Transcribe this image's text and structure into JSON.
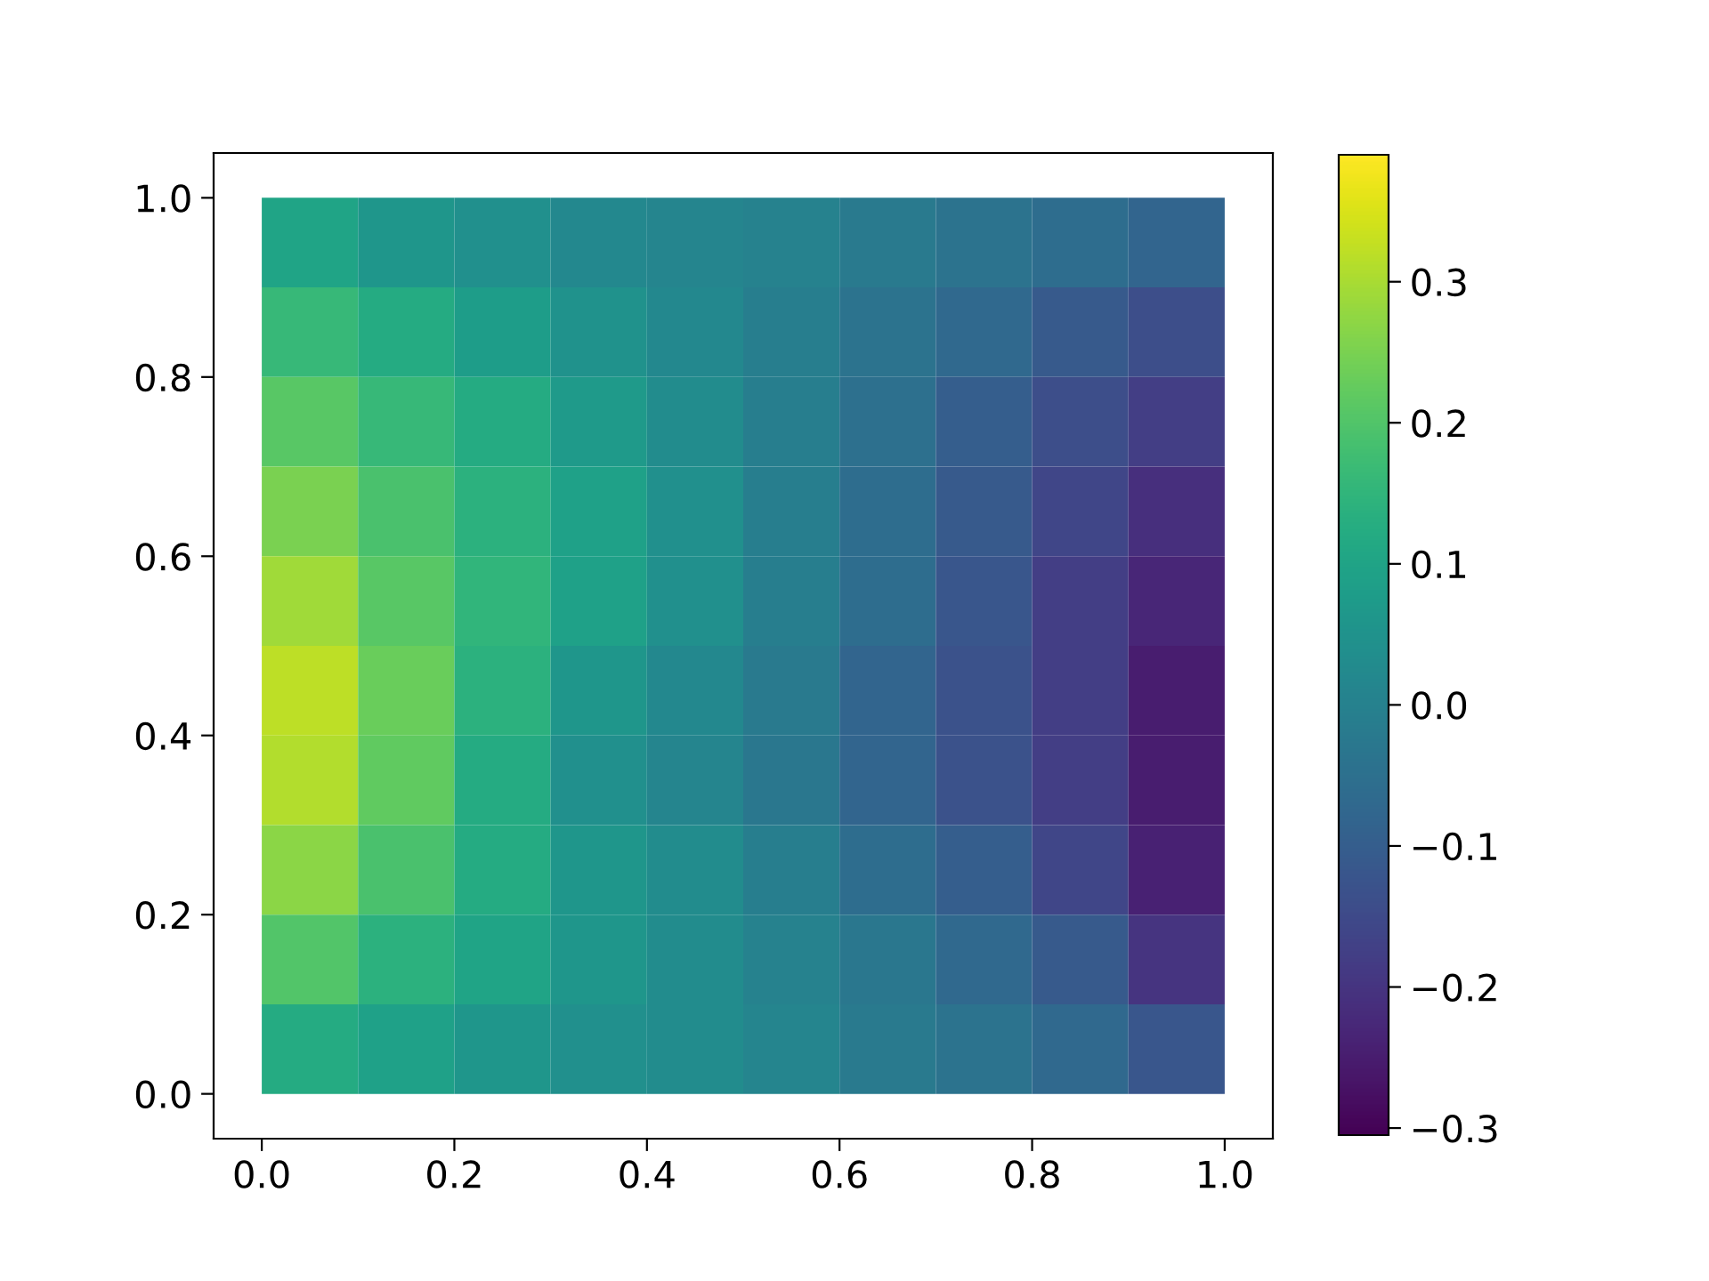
{
  "chart_data": {
    "type": "heatmap",
    "x": [
      0.05,
      0.15,
      0.25,
      0.35,
      0.45,
      0.55,
      0.65,
      0.75,
      0.85,
      0.95
    ],
    "cells": [
      [
        0.1,
        0.06,
        0.04,
        0.02,
        0.01,
        0.0,
        -0.02,
        -0.04,
        -0.06,
        -0.08
      ],
      [
        0.16,
        0.12,
        0.08,
        0.05,
        0.02,
        -0.01,
        -0.04,
        -0.07,
        -0.11,
        -0.14
      ],
      [
        0.21,
        0.16,
        0.12,
        0.07,
        0.03,
        -0.01,
        -0.05,
        -0.1,
        -0.14,
        -0.18
      ],
      [
        0.25,
        0.19,
        0.14,
        0.09,
        0.04,
        -0.01,
        -0.06,
        -0.11,
        -0.16,
        -0.21
      ],
      [
        0.29,
        0.21,
        0.15,
        0.09,
        0.04,
        -0.01,
        -0.06,
        -0.12,
        -0.18,
        -0.23
      ],
      [
        0.32,
        0.23,
        0.14,
        0.06,
        0.02,
        -0.02,
        -0.08,
        -0.13,
        -0.18,
        -0.25
      ],
      [
        0.31,
        0.22,
        0.12,
        0.04,
        0.01,
        -0.03,
        -0.08,
        -0.13,
        -0.18,
        -0.25
      ],
      [
        0.27,
        0.19,
        0.12,
        0.06,
        0.03,
        -0.01,
        -0.06,
        -0.1,
        -0.16,
        -0.24
      ],
      [
        0.2,
        0.14,
        0.1,
        0.06,
        0.03,
        0.0,
        -0.03,
        -0.07,
        -0.11,
        -0.2
      ],
      [
        0.12,
        0.09,
        0.06,
        0.04,
        0.03,
        0.01,
        -0.02,
        -0.04,
        -0.07,
        -0.12
      ]
    ],
    "clim": [
      -0.305,
      0.39
    ],
    "cticks": [
      {
        "value": -0.3,
        "label": "−0.3"
      },
      {
        "value": -0.2,
        "label": "−0.2"
      },
      {
        "value": -0.1,
        "label": "−0.1"
      },
      {
        "value": 0,
        "label": "0.0"
      },
      0.1,
      0.2,
      0.3
    ],
    "xlim": [
      -0.05,
      1.05
    ],
    "ylim": [
      -0.05,
      1.05
    ],
    "xticks": [
      {
        "value": 0,
        "label": "0.0"
      },
      0.2,
      0.4,
      0.6,
      0.8,
      {
        "value": 1,
        "label": "1.0"
      }
    ],
    "yticks": [
      {
        "value": 0,
        "label": "0.0"
      },
      0.2,
      0.4,
      0.6,
      0.8,
      {
        "value": 1,
        "label": "1.0"
      }
    ]
  }
}
